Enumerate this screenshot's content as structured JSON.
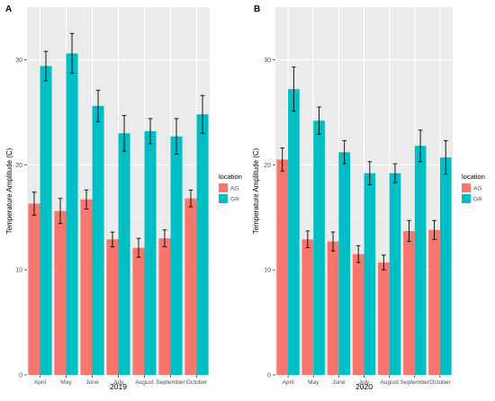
{
  "panels": [
    "A",
    "B"
  ],
  "colors": {
    "panel_bg": "#ebebeb",
    "grid_major": "#ffffff",
    "grid_minor": "#f5f5f5",
    "AG": "#f8766d",
    "GR": "#00bfc4",
    "text": "#4d4d4d",
    "title_text": "#000000"
  },
  "chart_data": [
    {
      "type": "bar",
      "panel_label": "A",
      "xlabel": "2019",
      "ylabel": "Temperature Amplitude (C)",
      "ylim": [
        0,
        35
      ],
      "yticks": [
        0,
        10,
        20,
        30
      ],
      "grid": true,
      "legend": {
        "title": "location",
        "position": "right"
      },
      "categories": [
        "April",
        "May",
        "June",
        "July",
        "August",
        "September",
        "October"
      ],
      "series": [
        {
          "name": "AG",
          "values": [
            16.3,
            15.6,
            16.7,
            12.9,
            12.1,
            13.0,
            16.8
          ],
          "error": [
            1.1,
            1.2,
            0.9,
            0.7,
            0.9,
            0.8,
            0.8
          ]
        },
        {
          "name": "GR",
          "values": [
            29.4,
            30.6,
            25.6,
            23.0,
            23.2,
            22.7,
            24.8
          ],
          "error": [
            1.4,
            1.9,
            1.5,
            1.7,
            1.2,
            1.7,
            1.8
          ]
        }
      ]
    },
    {
      "type": "bar",
      "panel_label": "B",
      "xlabel": "2020",
      "ylabel": "Temperature Amplitude (C)",
      "ylim": [
        0,
        35
      ],
      "yticks": [
        0,
        10,
        20,
        30
      ],
      "grid": true,
      "legend": {
        "title": "location",
        "position": "right"
      },
      "categories": [
        "April",
        "May",
        "June",
        "July",
        "August",
        "September",
        "October"
      ],
      "series": [
        {
          "name": "AG",
          "values": [
            20.5,
            12.9,
            12.7,
            11.5,
            10.7,
            13.7,
            13.8
          ],
          "error": [
            1.1,
            0.8,
            0.9,
            0.8,
            0.7,
            1.0,
            0.9
          ]
        },
        {
          "name": "GR",
          "values": [
            27.2,
            24.2,
            21.2,
            19.2,
            19.2,
            21.8,
            20.7
          ],
          "error": [
            2.1,
            1.3,
            1.1,
            1.1,
            0.9,
            1.5,
            1.6
          ]
        }
      ]
    }
  ]
}
